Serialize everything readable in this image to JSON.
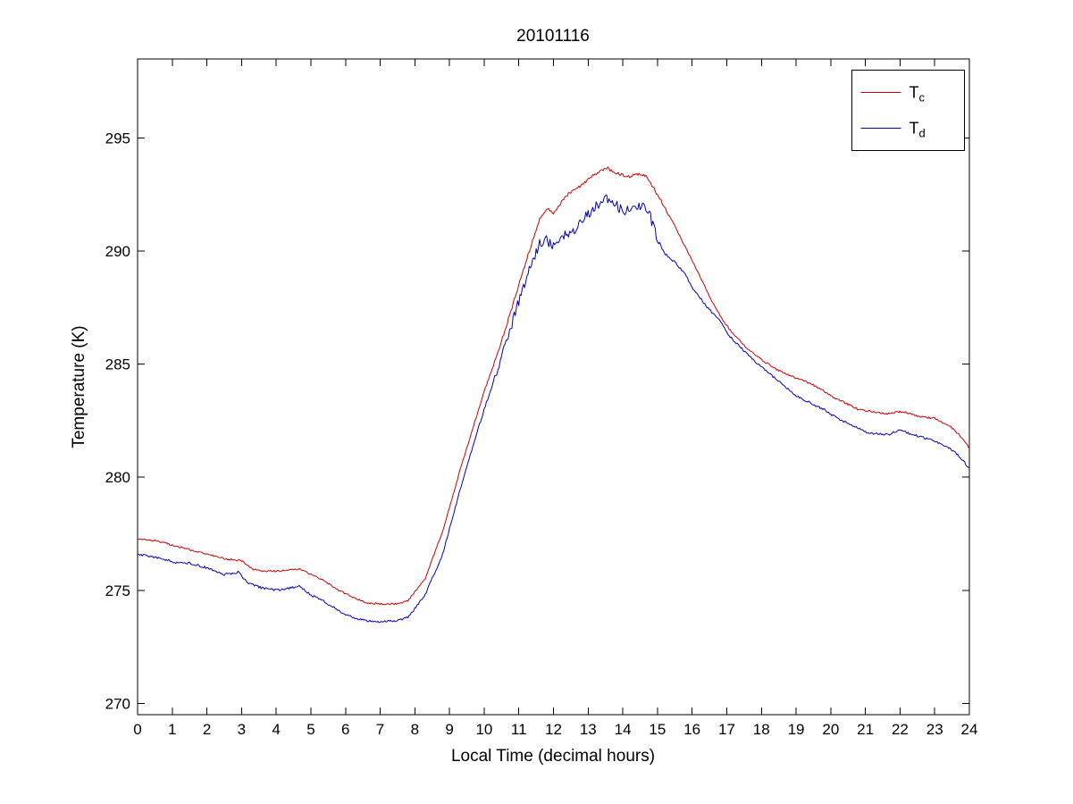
{
  "chart_data": {
    "type": "line",
    "title": "20101116",
    "xlabel": "Local Time (decimal hours)",
    "ylabel": "Temperature (K)",
    "xlim": [
      0,
      24
    ],
    "ylim": [
      269.5,
      298.5
    ],
    "xticks": [
      0,
      1,
      2,
      3,
      4,
      5,
      6,
      7,
      8,
      9,
      10,
      11,
      12,
      13,
      14,
      15,
      16,
      17,
      18,
      19,
      20,
      21,
      22,
      23,
      24
    ],
    "yticks": [
      270,
      275,
      280,
      285,
      290,
      295
    ],
    "grid": false,
    "background_color": "#ffffff",
    "axis_color": "#000000",
    "legend": {
      "position": "northeast",
      "entries": [
        {
          "main": "T",
          "sub": "c",
          "color": "#cc0000"
        },
        {
          "main": "T",
          "sub": "d",
          "color": "#0000bb"
        }
      ]
    },
    "series": [
      {
        "name": "Tc",
        "color": "#cc0000",
        "x": [
          0,
          0.5,
          1,
          1.5,
          2,
          2.5,
          3,
          3.3,
          3.6,
          4,
          4.4,
          4.65,
          5,
          5.4,
          5.8,
          6.2,
          6.6,
          7,
          7.5,
          7.8,
          8.3,
          8.8,
          9.3,
          9.7,
          10,
          10.5,
          10.9,
          11.3,
          11.6,
          11.8,
          12,
          12.4,
          12.7,
          13.1,
          13.4,
          13.5,
          13.9,
          14.2,
          14.4,
          14.7,
          15,
          15.4,
          15.8,
          16.1,
          16.5,
          16.9,
          17.2,
          17.6,
          18,
          18.4,
          18.8,
          19.2,
          19.6,
          20,
          20.4,
          20.8,
          21.2,
          21.6,
          22,
          22.1,
          22.5,
          23,
          23.4,
          23.7,
          24
        ],
        "y": [
          277.3,
          277.2,
          277.0,
          276.8,
          276.6,
          276.4,
          276.3,
          275.95,
          275.85,
          275.85,
          275.9,
          275.95,
          275.7,
          275.4,
          275.0,
          274.7,
          274.45,
          274.4,
          274.4,
          274.55,
          275.5,
          277.6,
          280.3,
          282.3,
          283.8,
          286.0,
          288.0,
          290.0,
          291.4,
          291.9,
          291.7,
          292.5,
          292.8,
          293.3,
          293.6,
          293.7,
          293.4,
          293.3,
          293.4,
          293.3,
          292.5,
          291.4,
          290.2,
          289.3,
          288.0,
          286.9,
          286.3,
          285.7,
          285.2,
          284.8,
          284.5,
          284.3,
          284.0,
          283.6,
          283.3,
          283.0,
          282.9,
          282.8,
          282.9,
          282.9,
          282.7,
          282.6,
          282.3,
          281.9,
          281.3
        ],
        "noise": [
          {
            "from": 0,
            "to": 10,
            "amp": 0.04
          },
          {
            "from": 10,
            "to": 15.5,
            "amp": 0.07
          },
          {
            "from": 15.5,
            "to": 24,
            "amp": 0.04
          }
        ]
      },
      {
        "name": "Td",
        "color": "#0000bb",
        "x": [
          0,
          0.7,
          1.2,
          1.5,
          2,
          2.5,
          2.9,
          3.2,
          3.6,
          4,
          4.4,
          4.65,
          5,
          5.4,
          5.8,
          6.2,
          6.6,
          7,
          7.5,
          7.8,
          8.3,
          8.8,
          9.3,
          9.7,
          10,
          10.5,
          10.9,
          11.3,
          11.6,
          11.8,
          12,
          12.2,
          12.5,
          12.8,
          13.1,
          13.3,
          13.5,
          13.7,
          13.9,
          14.1,
          14.4,
          14.6,
          14.8,
          15,
          15.2,
          15.5,
          15.8,
          16,
          16.4,
          16.8,
          17.1,
          17.5,
          17.9,
          18.3,
          18.7,
          19,
          19.4,
          19.8,
          20.2,
          20.6,
          21,
          21.4,
          21.7,
          22,
          22.3,
          22.6,
          23,
          23.3,
          23.6,
          24
        ],
        "y": [
          276.6,
          276.4,
          276.2,
          276.2,
          276.0,
          275.7,
          275.8,
          275.3,
          275.1,
          275.0,
          275.1,
          275.2,
          274.8,
          274.5,
          274.1,
          273.8,
          273.65,
          273.6,
          273.65,
          273.8,
          274.8,
          276.6,
          279.4,
          281.5,
          283.0,
          285.3,
          287.3,
          289.2,
          290.3,
          290.5,
          290.2,
          290.6,
          290.8,
          291.3,
          291.8,
          292.1,
          292.3,
          292.2,
          291.9,
          291.8,
          292.0,
          291.9,
          291.5,
          290.5,
          289.9,
          289.5,
          289.0,
          288.4,
          287.6,
          286.9,
          286.2,
          285.6,
          285.0,
          284.5,
          284.0,
          283.6,
          283.3,
          283.0,
          282.6,
          282.3,
          282.0,
          281.9,
          281.9,
          282.1,
          281.9,
          281.8,
          281.6,
          281.4,
          281.1,
          280.4
        ],
        "noise": [
          {
            "from": 0,
            "to": 10.3,
            "amp": 0.05
          },
          {
            "from": 10.3,
            "to": 15.1,
            "amp": 0.22
          },
          {
            "from": 15.1,
            "to": 24,
            "amp": 0.05
          }
        ]
      }
    ]
  }
}
